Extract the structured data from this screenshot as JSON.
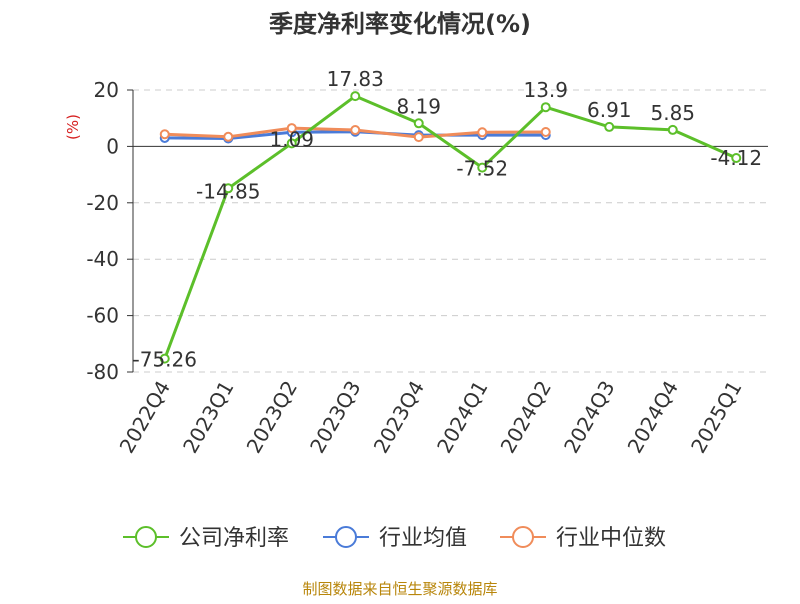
{
  "title": "季度净利率变化情况(%)",
  "source": "制图数据来自恒生聚源数据库",
  "chart_data": {
    "type": "line",
    "title": "季度净利率变化情况(%)",
    "ylabel": "(%)",
    "xlabel": "",
    "ylim": [
      -80,
      20
    ],
    "yticks": [
      "20",
      "0",
      "-20",
      "-40",
      "-60",
      "-80"
    ],
    "grid": true,
    "legend_position": "bottom",
    "categories": [
      "2022Q4",
      "2023Q1",
      "2023Q2",
      "2023Q3",
      "2023Q4",
      "2024Q1",
      "2024Q2",
      "2024Q3",
      "2024Q4",
      "2025Q1"
    ],
    "series": [
      {
        "name": "公司净利率",
        "color": "#5cbf2a",
        "values": [
          -75.26,
          -14.85,
          1.09,
          17.83,
          8.19,
          -7.52,
          13.9,
          6.91,
          5.85,
          -4.12
        ],
        "labels": [
          "-75.26",
          "-14.85",
          "1.09",
          "17.83",
          "8.19",
          "-7.52",
          "13.9",
          "6.91",
          "5.85",
          "-4.12"
        ]
      },
      {
        "name": "行业均值",
        "color": "#4a7bd8",
        "values": [
          3.0,
          2.8,
          5.0,
          5.2,
          4.0,
          4.0,
          4.0,
          null,
          null,
          null
        ]
      },
      {
        "name": "行业中位数",
        "color": "#f08c5a",
        "values": [
          4.3,
          3.4,
          6.5,
          5.8,
          3.3,
          5.0,
          5.1,
          null,
          null,
          null
        ]
      }
    ]
  }
}
